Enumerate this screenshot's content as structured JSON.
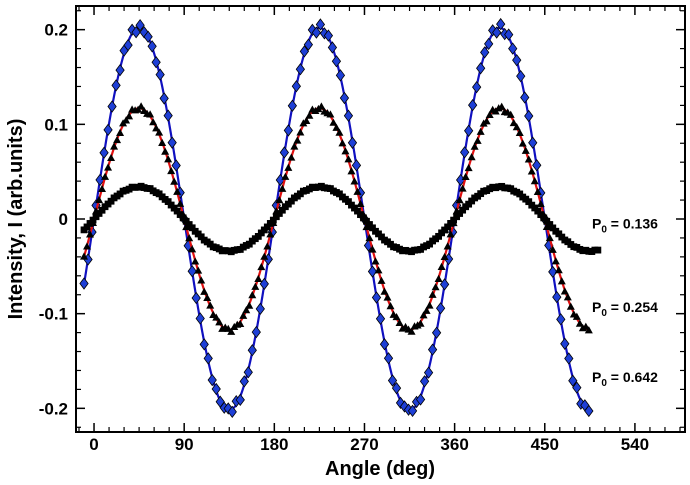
{
  "chart_data": {
    "type": "scatter",
    "title": "",
    "xlabel": "Angle (deg)",
    "ylabel": "Intensity, I (arb.units)",
    "xlim": [
      -18,
      590
    ],
    "ylim": [
      -0.225,
      0.225
    ],
    "xticks": [
      0,
      90,
      180,
      270,
      360,
      450,
      540
    ],
    "yticks": [
      -0.2,
      -0.1,
      0,
      0.1,
      0.2
    ],
    "ytick_labels": [
      "-0.2",
      "-0.1",
      "0",
      "0.1",
      "0.2"
    ],
    "x_range": [
      -10,
      495
    ],
    "series": [
      {
        "name": "P0 = 0.642",
        "marker": "diamond",
        "marker_color": "#1e3fd6",
        "fit_color": "#1010c0",
        "amplitude": 0.202,
        "period_deg": 180,
        "phase_peak_deg": 45,
        "x_end": 495,
        "label_prefix": "P",
        "label_sub": "0",
        "label_value": " = 0.642",
        "label_y": -0.172
      },
      {
        "name": "P0 = 0.254",
        "marker": "triangle",
        "marker_color": "#000000",
        "fit_color": "#e01010",
        "amplitude": 0.117,
        "period_deg": 180,
        "phase_peak_deg": 45,
        "x_end": 495,
        "label_prefix": "P",
        "label_sub": "0",
        "label_value": " = 0.254",
        "label_y": -0.098
      },
      {
        "name": "P0 = 0.136",
        "marker": "square",
        "marker_color": "#000000",
        "fit_color": "#000000",
        "amplitude": 0.034,
        "period_deg": 180,
        "phase_peak_deg": 45,
        "x_end": 505,
        "label_prefix": "P",
        "label_sub": "0",
        "label_value": " = 0.136",
        "label_y": -0.01
      }
    ]
  }
}
